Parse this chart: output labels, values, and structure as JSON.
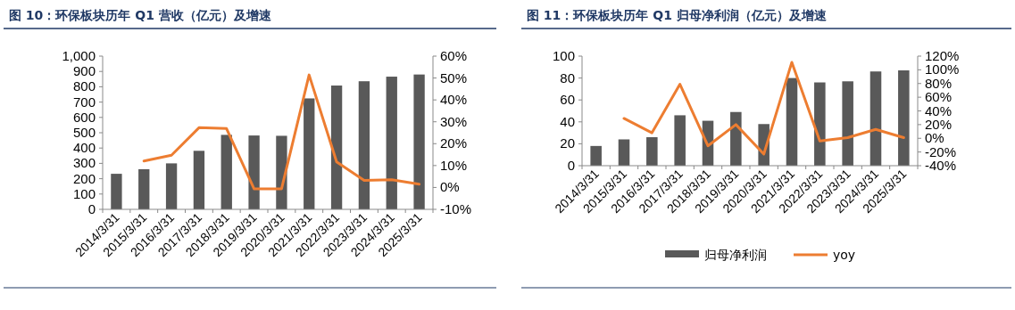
{
  "chart_data": [
    {
      "type": "bar",
      "title": "图 10：环保板块历年 Q1 营收（亿元）及增速",
      "categories": [
        "2014/3/31",
        "2015/3/31",
        "2016/3/31",
        "2017/3/31",
        "2018/3/31",
        "2019/3/31",
        "2020/3/31",
        "2021/3/31",
        "2022/3/31",
        "2023/3/31",
        "2024/3/31",
        "2025/3/31"
      ],
      "series": [
        {
          "axis": "y",
          "color": "#595959",
          "values": [
            232,
            262,
            300,
            382,
            486,
            482,
            480,
            724,
            808,
            836,
            866,
            880
          ]
        },
        {
          "type": "line",
          "axis": "y2",
          "color": "#ed7d31",
          "values": [
            null,
            12.1,
            14.7,
            27.3,
            26.9,
            -0.6,
            -0.6,
            51.4,
            11.7,
            3.2,
            3.5,
            1.5
          ]
        }
      ],
      "ylim": [
        0,
        1000
      ],
      "yticks": [
        0,
        100,
        200,
        300,
        400,
        500,
        600,
        700,
        800,
        900,
        {
          "value": 1000,
          "label": "1,000"
        }
      ],
      "y2lim": [
        -10,
        60
      ],
      "y2ticks": [
        {
          "value": -10,
          "label": "-10%"
        },
        {
          "value": 0,
          "label": "0%"
        },
        {
          "value": 10,
          "label": "10%"
        },
        {
          "value": 20,
          "label": "20%"
        },
        {
          "value": 30,
          "label": "30%"
        },
        {
          "value": 40,
          "label": "40%"
        },
        {
          "value": 50,
          "label": "50%"
        },
        {
          "value": 60,
          "label": "60%"
        }
      ],
      "grid": false,
      "legend": false,
      "marker": "none",
      "line_style": "solid"
    },
    {
      "type": "bar",
      "title": "图 11：环保板块历年 Q1 归母净利润（亿元）及增速",
      "categories": [
        "2014/3/31",
        "2015/3/31",
        "2016/3/31",
        "2017/3/31",
        "2018/3/31",
        "2019/3/31",
        "2020/3/31",
        "2021/3/31",
        "2022/3/31",
        "2023/3/31",
        "2024/3/31",
        "2025/3/31"
      ],
      "series": [
        {
          "axis": "y",
          "name": "归母净利润",
          "color": "#595959",
          "values": [
            18,
            24,
            26,
            46,
            41,
            49,
            38,
            80,
            76,
            77,
            86,
            87
          ]
        },
        {
          "type": "line",
          "axis": "y2",
          "name": "yoy",
          "color": "#ed7d31",
          "values": [
            null,
            29,
            8,
            79,
            -11,
            20,
            -23,
            111,
            -4,
            1,
            13,
            1
          ]
        }
      ],
      "ylim": [
        0,
        100
      ],
      "yticks": [
        0,
        20,
        40,
        60,
        80,
        100
      ],
      "y2lim": [
        -40,
        120
      ],
      "y2ticks": [
        {
          "value": -40,
          "label": "-40%"
        },
        {
          "value": -20,
          "label": "-20%"
        },
        {
          "value": 0,
          "label": "0%"
        },
        {
          "value": 20,
          "label": "20%"
        },
        {
          "value": 40,
          "label": "40%"
        },
        {
          "value": 60,
          "label": "60%"
        },
        {
          "value": 80,
          "label": "80%"
        },
        {
          "value": 100,
          "label": "100%"
        },
        {
          "value": 120,
          "label": "120%"
        }
      ],
      "grid": false,
      "legend": "bottom",
      "marker": "none",
      "line_style": "solid"
    }
  ]
}
